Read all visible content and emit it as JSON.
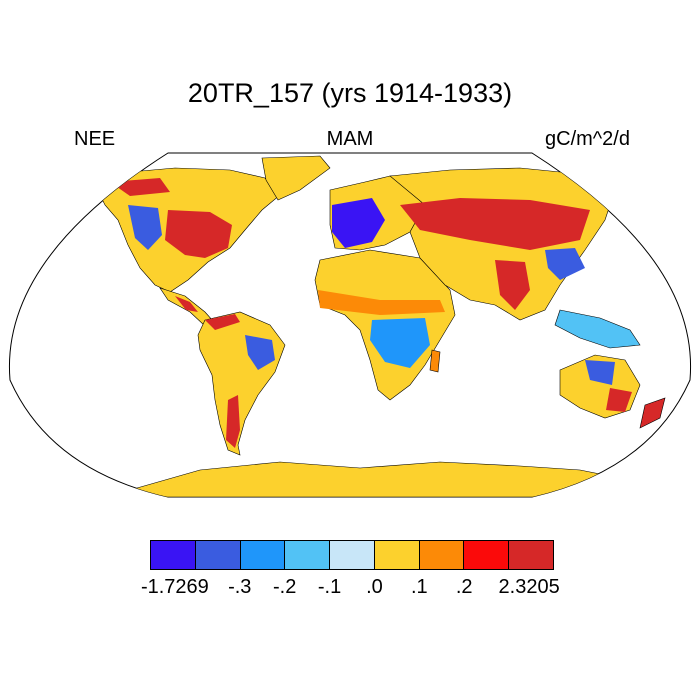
{
  "title": "20TR_157 (yrs 1914-1933)",
  "left_label": "NEE",
  "center_label": "MAM",
  "right_label": "gC/m^2/d",
  "colorbar": {
    "colors": [
      "#3a14f4",
      "#3a5ce0",
      "#1f96fa",
      "#52c2f5",
      "#c8e6f8",
      "#fcd12d",
      "#fc8a07",
      "#fb0a0a",
      "#d62828"
    ],
    "labels": [
      "-1.7269",
      "-.3",
      "-.2",
      "-.1",
      ".0",
      ".1",
      ".2",
      "2.3205"
    ]
  },
  "map": {
    "projection": "robinson",
    "ocean_color": "#ffffff",
    "coastline_color": "#000000"
  }
}
